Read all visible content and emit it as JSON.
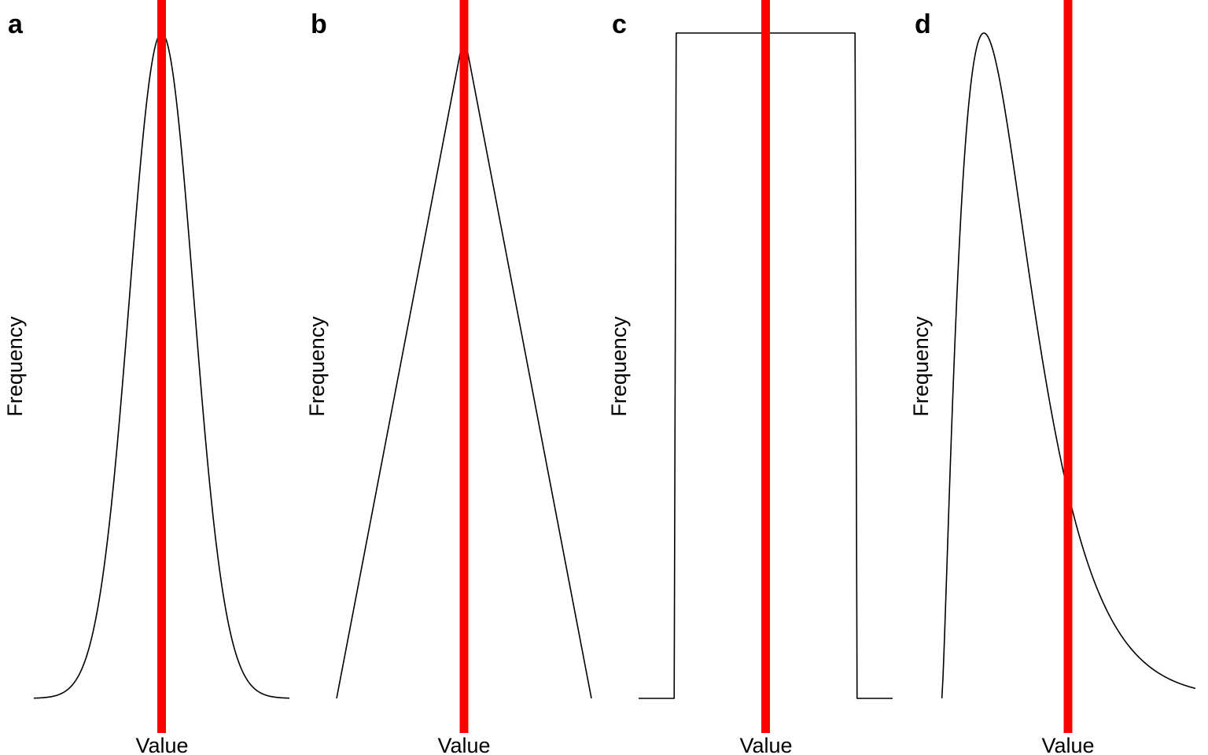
{
  "chart_data": [
    {
      "panel": "a",
      "type": "line",
      "shape": "normal",
      "xlabel": "Value",
      "ylabel": "Frequency",
      "xlim": [
        -4,
        4
      ],
      "ylim": [
        0,
        1
      ],
      "peak": 0,
      "sd": 1,
      "marker_x": 0,
      "marker_color": "#ff0000",
      "line_color": "#000000",
      "grid": false
    },
    {
      "panel": "b",
      "type": "line",
      "shape": "triangular",
      "xlabel": "Value",
      "ylabel": "Frequency",
      "xlim": [
        -1,
        1
      ],
      "ylim": [
        0,
        1
      ],
      "x": [
        -1,
        0,
        1
      ],
      "y": [
        0,
        1,
        0
      ],
      "marker_x": 0,
      "marker_color": "#ff0000",
      "line_color": "#000000",
      "grid": false
    },
    {
      "panel": "c",
      "type": "line",
      "shape": "uniform",
      "xlabel": "Value",
      "ylabel": "Frequency",
      "xlim": [
        -1.25,
        1.25
      ],
      "ylim": [
        0,
        1
      ],
      "x": [
        -1.25,
        -0.9,
        -0.88,
        0.88,
        0.9,
        1.25
      ],
      "y": [
        0,
        0,
        1,
        1,
        0,
        0
      ],
      "marker_x": 0,
      "marker_color": "#ff0000",
      "line_color": "#000000",
      "grid": false
    },
    {
      "panel": "d",
      "type": "line",
      "shape": "right-skewed",
      "xlabel": "Value",
      "ylabel": "Frequency",
      "xlim": [
        0,
        10
      ],
      "ylim": [
        0,
        1
      ],
      "support_start": 0.05,
      "peak": 1.7,
      "marker_x": 5,
      "marker_color": "#ff0000",
      "line_color": "#000000",
      "grid": false
    }
  ]
}
